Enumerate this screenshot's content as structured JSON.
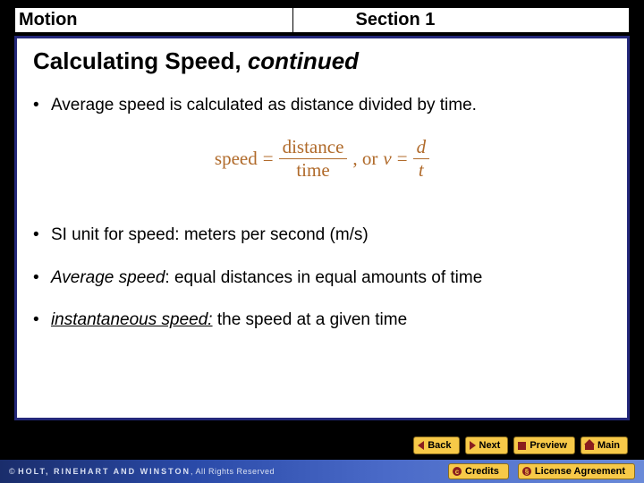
{
  "header": {
    "left": "Motion",
    "right": "Section 1"
  },
  "title": {
    "main": "Calculating Speed, ",
    "continued": "continued"
  },
  "bullets": [
    {
      "text": "Average speed is calculated as distance divided by time."
    },
    {
      "text": "SI unit for speed: meters per second (m/s)"
    },
    {
      "italic_prefix": "Average speed",
      "rest": ": equal distances in equal amounts of time"
    },
    {
      "italic_underline_prefix": "instantaneous speed:",
      "rest": " the speed at a given time"
    }
  ],
  "formula": {
    "speed_word": "speed",
    "eq": " = ",
    "distance": "distance",
    "time": "time",
    "or": ", or ",
    "v": "v",
    "eq2": " = ",
    "d": "d",
    "t": "t",
    "color": "#b06a2a",
    "fontsize": 21
  },
  "nav": {
    "back": "Back",
    "next": "Next",
    "preview": "Preview",
    "main": "Main"
  },
  "footer": {
    "copyright_prefix": "© ",
    "hrw": "HOLT, RINEHART AND WINSTON",
    "copyright_suffix": ", All Rights Reserved",
    "credits": "Credits",
    "license": "License Agreement"
  },
  "colors": {
    "content_border": "#24287a",
    "background": "#000000",
    "content_bg": "#ffffff",
    "btn_bg": "#f7c948",
    "btn_icon": "#8a1e1e",
    "footer_grad_start": "#1a2d6b",
    "footer_grad_end": "#6a8ad8"
  }
}
